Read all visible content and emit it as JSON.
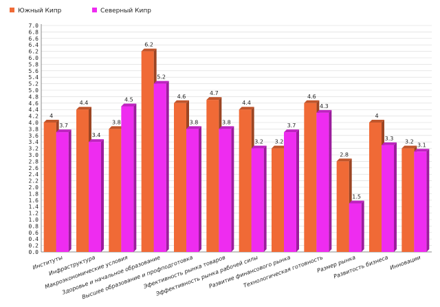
{
  "chart_data": {
    "type": "bar",
    "legend_position": "top-left",
    "grid": true,
    "ylim": [
      0,
      7.0
    ],
    "ytick_step": 0.2,
    "categories": [
      "Институты",
      "Инфраструктура",
      "Макроэкономические условия",
      "Здоровье и начальное образование",
      "Высшее образование и профподготовка",
      "Эфективность рынка товаров",
      "Эффективность рынка рабочей силы",
      "Развитие финансового рынка",
      "Технологическая готовность",
      "Размер рынка",
      "Развитость бизнеса",
      "Инновации"
    ],
    "series": [
      {
        "name": "Южный Кипр",
        "color": "#f06a36",
        "values": [
          4,
          4.4,
          3.8,
          6.2,
          4.6,
          4.7,
          4.4,
          3.2,
          4.6,
          2.8,
          4,
          3.2
        ]
      },
      {
        "name": "Северный Кипр",
        "color": "#ee2cf0",
        "values": [
          3.7,
          3.4,
          4.5,
          5.2,
          3.8,
          3.8,
          3.2,
          3.7,
          4.3,
          1.5,
          3.3,
          3.1
        ]
      }
    ]
  }
}
